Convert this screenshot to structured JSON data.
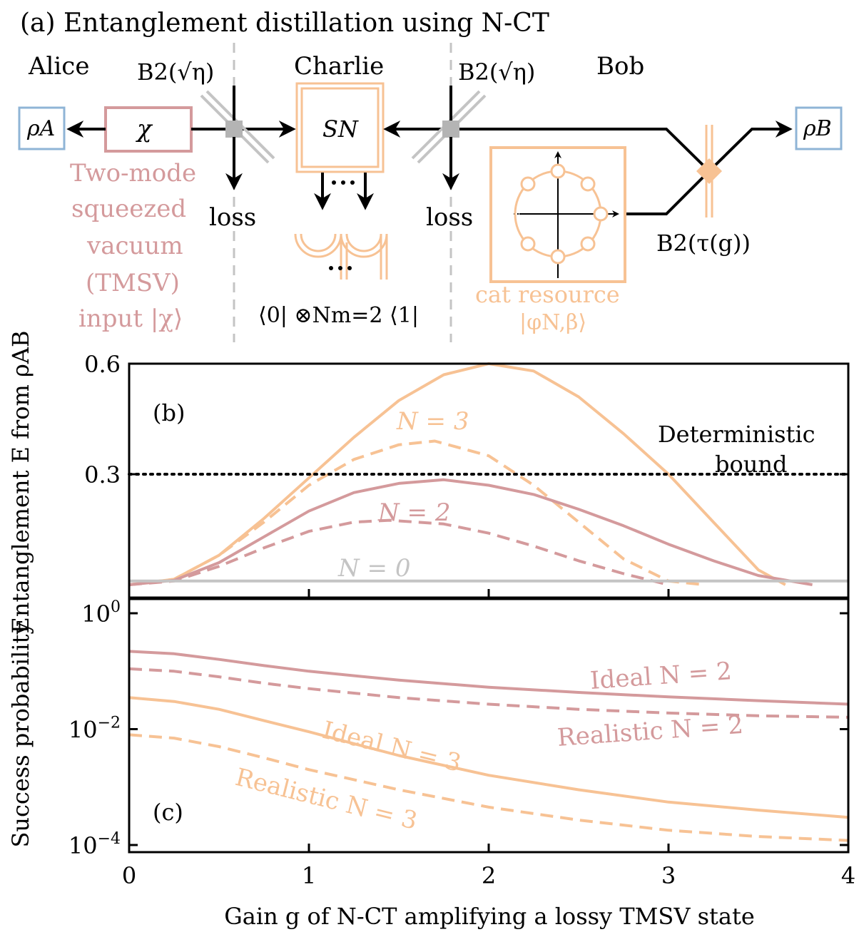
{
  "panel_a": {
    "title": "(a)  Entanglement distillation using N-CT",
    "alice": "Alice",
    "charlie": "Charlie",
    "bob": "Bob",
    "bs_left": "B2(√η)",
    "bs_right": "B2(√η)",
    "rho_a": "ρA",
    "rho_b": "ρB",
    "chi": "χ",
    "s_n": "SN",
    "loss_left": "loss",
    "loss_right": "loss",
    "tmsv_lines": [
      "Two-mode",
      "squeezed",
      "vacuum",
      "(TMSV)",
      "input |χ⟩"
    ],
    "projector": "⟨0| ⊗Nm=2 ⟨1|",
    "cat_lines": [
      "cat resource",
      "|φN,β⟩"
    ],
    "bs_tau": "B2(τ(g))",
    "colors": {
      "rose": "#d49a9c",
      "peach": "#f7c294",
      "blue": "#8fb4d6",
      "grey": "#c4c4c4"
    }
  },
  "chart_data": [
    {
      "panel": "(b)",
      "type": "line",
      "ylabel": "Entanglement E from ρAB",
      "xlim": [
        0,
        4
      ],
      "ylim": [
        0,
        0.6
      ],
      "yticks": [
        "0.3",
        "0.6"
      ],
      "grid": false,
      "series": [
        {
          "name": "N = 3",
          "style": "solid",
          "color": "#f7c294",
          "x": [
            0,
            0.25,
            0.5,
            0.75,
            1.0,
            1.25,
            1.5,
            1.75,
            2.0,
            2.25,
            2.5,
            2.75,
            3.0,
            3.25,
            3.5,
            3.65
          ],
          "y": [
            0,
            0.015,
            0.08,
            0.18,
            0.29,
            0.4,
            0.5,
            0.57,
            0.6,
            0.58,
            0.51,
            0.41,
            0.3,
            0.17,
            0.04,
            0
          ]
        },
        {
          "style": "dashed",
          "color": "#f7c294",
          "x": [
            0,
            0.25,
            0.5,
            0.75,
            1.0,
            1.25,
            1.5,
            1.7,
            2.0,
            2.25,
            2.5,
            2.75,
            3.0,
            3.2
          ],
          "y": [
            0,
            0.015,
            0.08,
            0.17,
            0.27,
            0.34,
            0.38,
            0.39,
            0.35,
            0.27,
            0.17,
            0.07,
            0.01,
            0
          ]
        },
        {
          "name": "N = 2",
          "style": "solid",
          "color": "#d49a9c",
          "x": [
            0,
            0.25,
            0.5,
            0.75,
            1.0,
            1.25,
            1.5,
            1.75,
            2.0,
            2.25,
            2.5,
            2.75,
            3.0,
            3.25,
            3.5,
            3.8
          ],
          "y": [
            0,
            0.012,
            0.06,
            0.13,
            0.2,
            0.25,
            0.275,
            0.285,
            0.27,
            0.245,
            0.205,
            0.16,
            0.11,
            0.065,
            0.025,
            0
          ]
        },
        {
          "style": "dashed",
          "color": "#d49a9c",
          "x": [
            0,
            0.25,
            0.5,
            0.75,
            1.0,
            1.25,
            1.45,
            1.75,
            2.0,
            2.25,
            2.5,
            2.75,
            3.0
          ],
          "y": [
            0,
            0.01,
            0.05,
            0.1,
            0.145,
            0.17,
            0.175,
            0.165,
            0.14,
            0.105,
            0.065,
            0.03,
            0
          ]
        },
        {
          "name": "N = 0",
          "style": "solid",
          "color": "#c4c4c4",
          "x": [
            0,
            4
          ],
          "y": [
            0.01,
            0.01
          ]
        },
        {
          "name": "Deterministic bound",
          "style": "dotted",
          "color": "#000000",
          "x": [
            0,
            4
          ],
          "y": [
            0.3,
            0.3
          ]
        }
      ],
      "annotations": [
        "(b)",
        "N = 3",
        "N = 2",
        "N = 0",
        "Deterministic",
        "bound"
      ]
    },
    {
      "panel": "(c)",
      "type": "line",
      "ylabel": "Success probability",
      "xlabel": "Gain g of N-CT amplifying a lossy TMSV state",
      "xlim": [
        0,
        4
      ],
      "ylim": [
        0.0001,
        1
      ],
      "yscale": "log",
      "yticks": [
        "10^0",
        "10^-2",
        "10^-4"
      ],
      "xticks": [
        "0",
        "1",
        "2",
        "3",
        "4"
      ],
      "grid": false,
      "series": [
        {
          "name": "Ideal N = 2",
          "style": "solid",
          "color": "#d49a9c",
          "x": [
            0,
            0.25,
            0.5,
            0.75,
            1.0,
            1.5,
            2.0,
            2.5,
            3.0,
            3.5,
            4.0
          ],
          "y": [
            0.22,
            0.2,
            0.16,
            0.125,
            0.1,
            0.07,
            0.053,
            0.043,
            0.036,
            0.031,
            0.027
          ]
        },
        {
          "name": "Realistic N = 2",
          "style": "dashed",
          "color": "#d49a9c",
          "x": [
            0,
            0.25,
            0.5,
            0.75,
            1.0,
            1.5,
            2.0,
            2.5,
            3.0,
            3.5,
            4.0
          ],
          "y": [
            0.11,
            0.1,
            0.08,
            0.062,
            0.05,
            0.035,
            0.027,
            0.022,
            0.019,
            0.017,
            0.016
          ]
        },
        {
          "name": "Ideal N = 3",
          "style": "solid",
          "color": "#f7c294",
          "x": [
            0,
            0.25,
            0.5,
            0.75,
            1.0,
            1.5,
            2.0,
            2.5,
            3.0,
            3.5,
            4.0
          ],
          "y": [
            0.035,
            0.03,
            0.022,
            0.014,
            0.009,
            0.0035,
            0.0016,
            0.0009,
            0.00055,
            0.0004,
            0.0003
          ]
        },
        {
          "name": "Realistic N = 3",
          "style": "dashed",
          "color": "#f7c294",
          "x": [
            0,
            0.25,
            0.5,
            0.75,
            1.0,
            1.5,
            2.0,
            2.5,
            3.0,
            3.5,
            4.0
          ],
          "y": [
            0.008,
            0.007,
            0.005,
            0.0032,
            0.002,
            0.0009,
            0.00045,
            0.00027,
            0.00018,
            0.00014,
            0.00012
          ]
        }
      ],
      "annotations": [
        "(c)"
      ]
    }
  ]
}
